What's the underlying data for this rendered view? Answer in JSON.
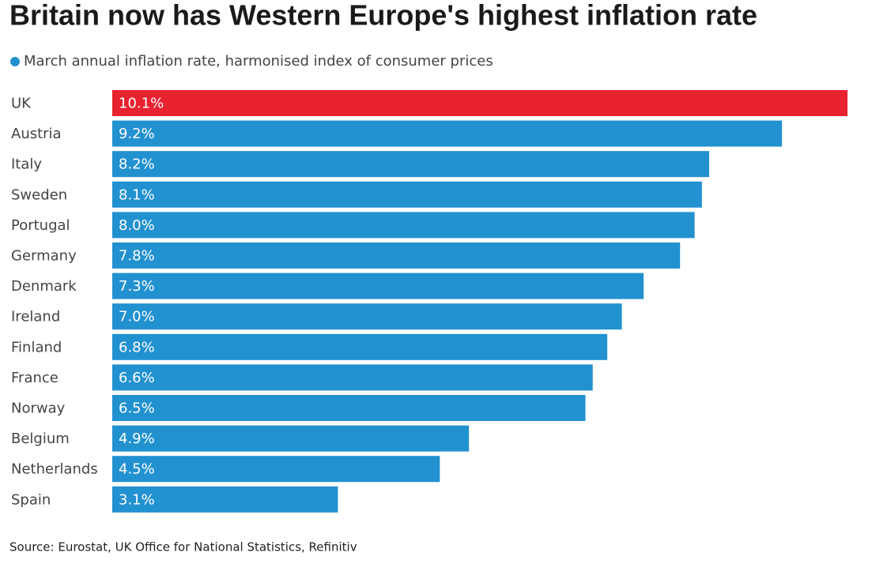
{
  "chart_data": {
    "type": "hbar",
    "title": "Britain now has Western Europe's highest inflation rate",
    "subtitle": "March annual inflation rate, harmonised index of consumer prices",
    "source": "Source: Eurostat, UK Office for National Statistics, Refinitiv",
    "categories": [
      "UK",
      "Austria",
      "Italy",
      "Sweden",
      "Portugal",
      "Germany",
      "Denmark",
      "Ireland",
      "Finland",
      "France",
      "Norway",
      "Belgium",
      "Netherlands",
      "Spain"
    ],
    "values": [
      10.1,
      9.2,
      8.2,
      8.1,
      8.0,
      7.8,
      7.3,
      7.0,
      6.8,
      6.6,
      6.5,
      4.9,
      4.5,
      3.1
    ],
    "value_labels": [
      "10.1%",
      "9.2%",
      "8.2%",
      "8.1%",
      "8.0%",
      "7.8%",
      "7.3%",
      "7.0%",
      "6.8%",
      "6.6%",
      "6.5%",
      "4.9%",
      "4.5%",
      "3.1%"
    ],
    "colors": [
      "#e8222f",
      "#2291d0",
      "#2291d0",
      "#2291d0",
      "#2291d0",
      "#2291d0",
      "#2291d0",
      "#2291d0",
      "#2291d0",
      "#2291d0",
      "#2291d0",
      "#2291d0",
      "#2291d0",
      "#2291d0"
    ]
  }
}
